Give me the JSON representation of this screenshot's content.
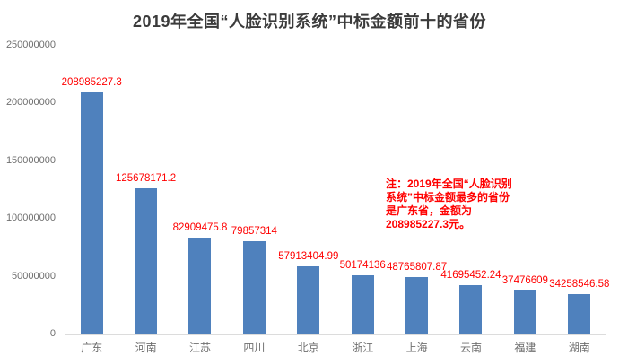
{
  "chart_data": {
    "type": "bar",
    "title": "2019年全国“人脸识别系统”中标金额前十的省份",
    "categories": [
      "广东",
      "河南",
      "江苏",
      "四川",
      "北京",
      "浙江",
      "上海",
      "云南",
      "福建",
      "湖南"
    ],
    "values": [
      208985227.3,
      125678171.2,
      82909475.8,
      79857314,
      57913404.99,
      50174136,
      48765807.87,
      41695452.24,
      37476609,
      34258546.58
    ],
    "data_labels": [
      "208985227.3",
      "125678171.2",
      "82909475.8",
      "79857314",
      "57913404.99",
      "50174136",
      "48765807.87",
      "41695452.24",
      "37476609",
      "34258546.58"
    ],
    "xlabel": "",
    "ylabel": "",
    "ylim": [
      0,
      250000000
    ],
    "yticks": [
      "0",
      "50000000",
      "100000000",
      "150000000",
      "200000000",
      "250000000"
    ],
    "grid": false,
    "legend": "none",
    "bar_color": "#4f81bd",
    "data_label_color": "#ff0000",
    "axis_text_color": "#6f6f6f"
  },
  "annotation": {
    "text": "注：2019年全国“人脸识别系统”中标金额最多的省份是广东省，金额为208985227.3元。",
    "color": "#ff0000"
  }
}
